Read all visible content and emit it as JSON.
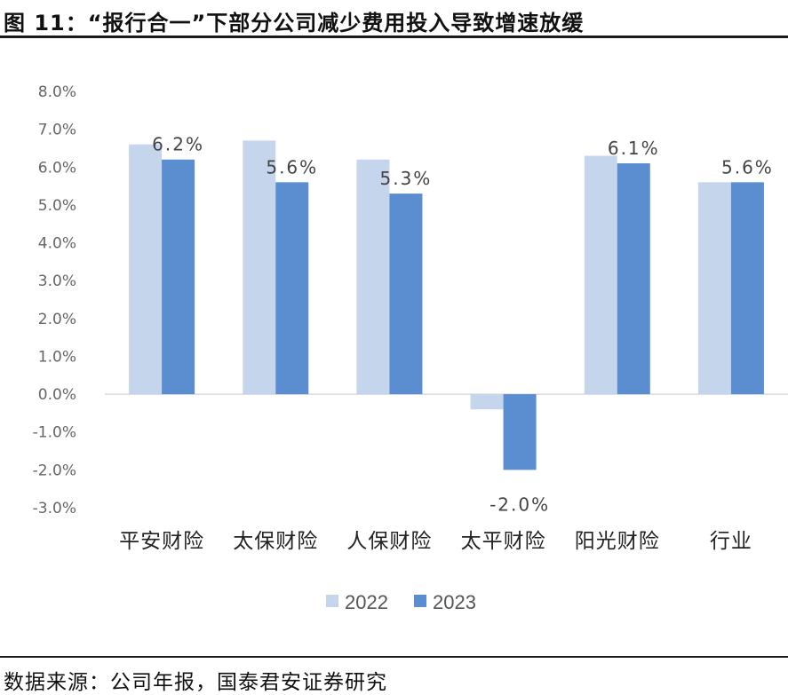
{
  "header": {
    "title": "图 11：“报行合一”下部分公司减少费用投入导致增速放缓"
  },
  "footer": {
    "source": "数据来源：公司年报，国泰君安证券研究"
  },
  "chart_data": {
    "type": "bar",
    "title": "",
    "categories": [
      "平安财险",
      "太保财险",
      "人保财险",
      "太平财险",
      "阳光财险",
      "行业"
    ],
    "series": [
      {
        "name": "2022",
        "values": [
          6.6,
          6.7,
          6.2,
          -0.4,
          6.3,
          5.6
        ],
        "color": "#c5d5ec"
      },
      {
        "name": "2023",
        "values": [
          6.2,
          5.6,
          5.3,
          -2.0,
          6.1,
          5.6
        ],
        "color": "#5b8dd1"
      }
    ],
    "data_labels": [
      {
        "category_index": 0,
        "series_index": 1,
        "text": "6.2%"
      },
      {
        "category_index": 1,
        "series_index": 1,
        "text": "5.6%"
      },
      {
        "category_index": 2,
        "series_index": 1,
        "text": "5.3%"
      },
      {
        "category_index": 3,
        "series_index": 1,
        "text": "-2.0%"
      },
      {
        "category_index": 4,
        "series_index": 1,
        "text": "6.1%"
      },
      {
        "category_index": 5,
        "series_index": 1,
        "text": "5.6%"
      }
    ],
    "yticks": [
      8.0,
      7.0,
      6.0,
      5.0,
      4.0,
      3.0,
      2.0,
      1.0,
      0.0,
      -1.0,
      -2.0,
      -3.0
    ],
    "ytick_labels": [
      "8.0%",
      "7.0%",
      "6.0%",
      "5.0%",
      "4.0%",
      "3.0%",
      "2.0%",
      "1.0%",
      "0.0%",
      "-1.0%",
      "-2.0%",
      "-3.0%"
    ],
    "ylim": [
      -3,
      8
    ],
    "grid": false,
    "legend": "bottom",
    "xlabel": "",
    "ylabel": ""
  }
}
